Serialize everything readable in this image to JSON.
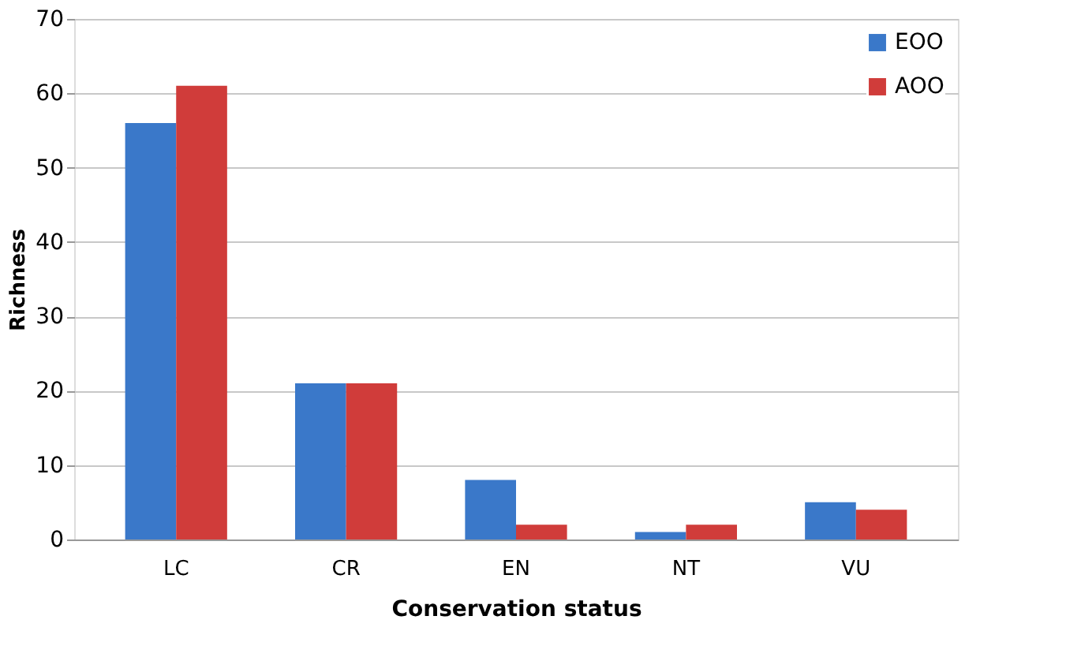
{
  "chart_data": {
    "type": "bar",
    "xlabel": "Conservation status",
    "ylabel": "Richness",
    "categories": [
      "LC",
      "CR",
      "EN",
      "NT",
      "VU"
    ],
    "series": [
      {
        "name": "EOO",
        "color": "#3a78c9",
        "values": [
          56,
          21,
          8,
          1,
          5
        ]
      },
      {
        "name": "AOO",
        "color": "#d03c3a",
        "values": [
          61,
          21,
          2,
          2,
          4
        ]
      }
    ],
    "ylim": [
      0,
      70
    ],
    "yticks": [
      0,
      10,
      20,
      30,
      40,
      50,
      60,
      70
    ],
    "grid": "y",
    "legend": "top right"
  }
}
